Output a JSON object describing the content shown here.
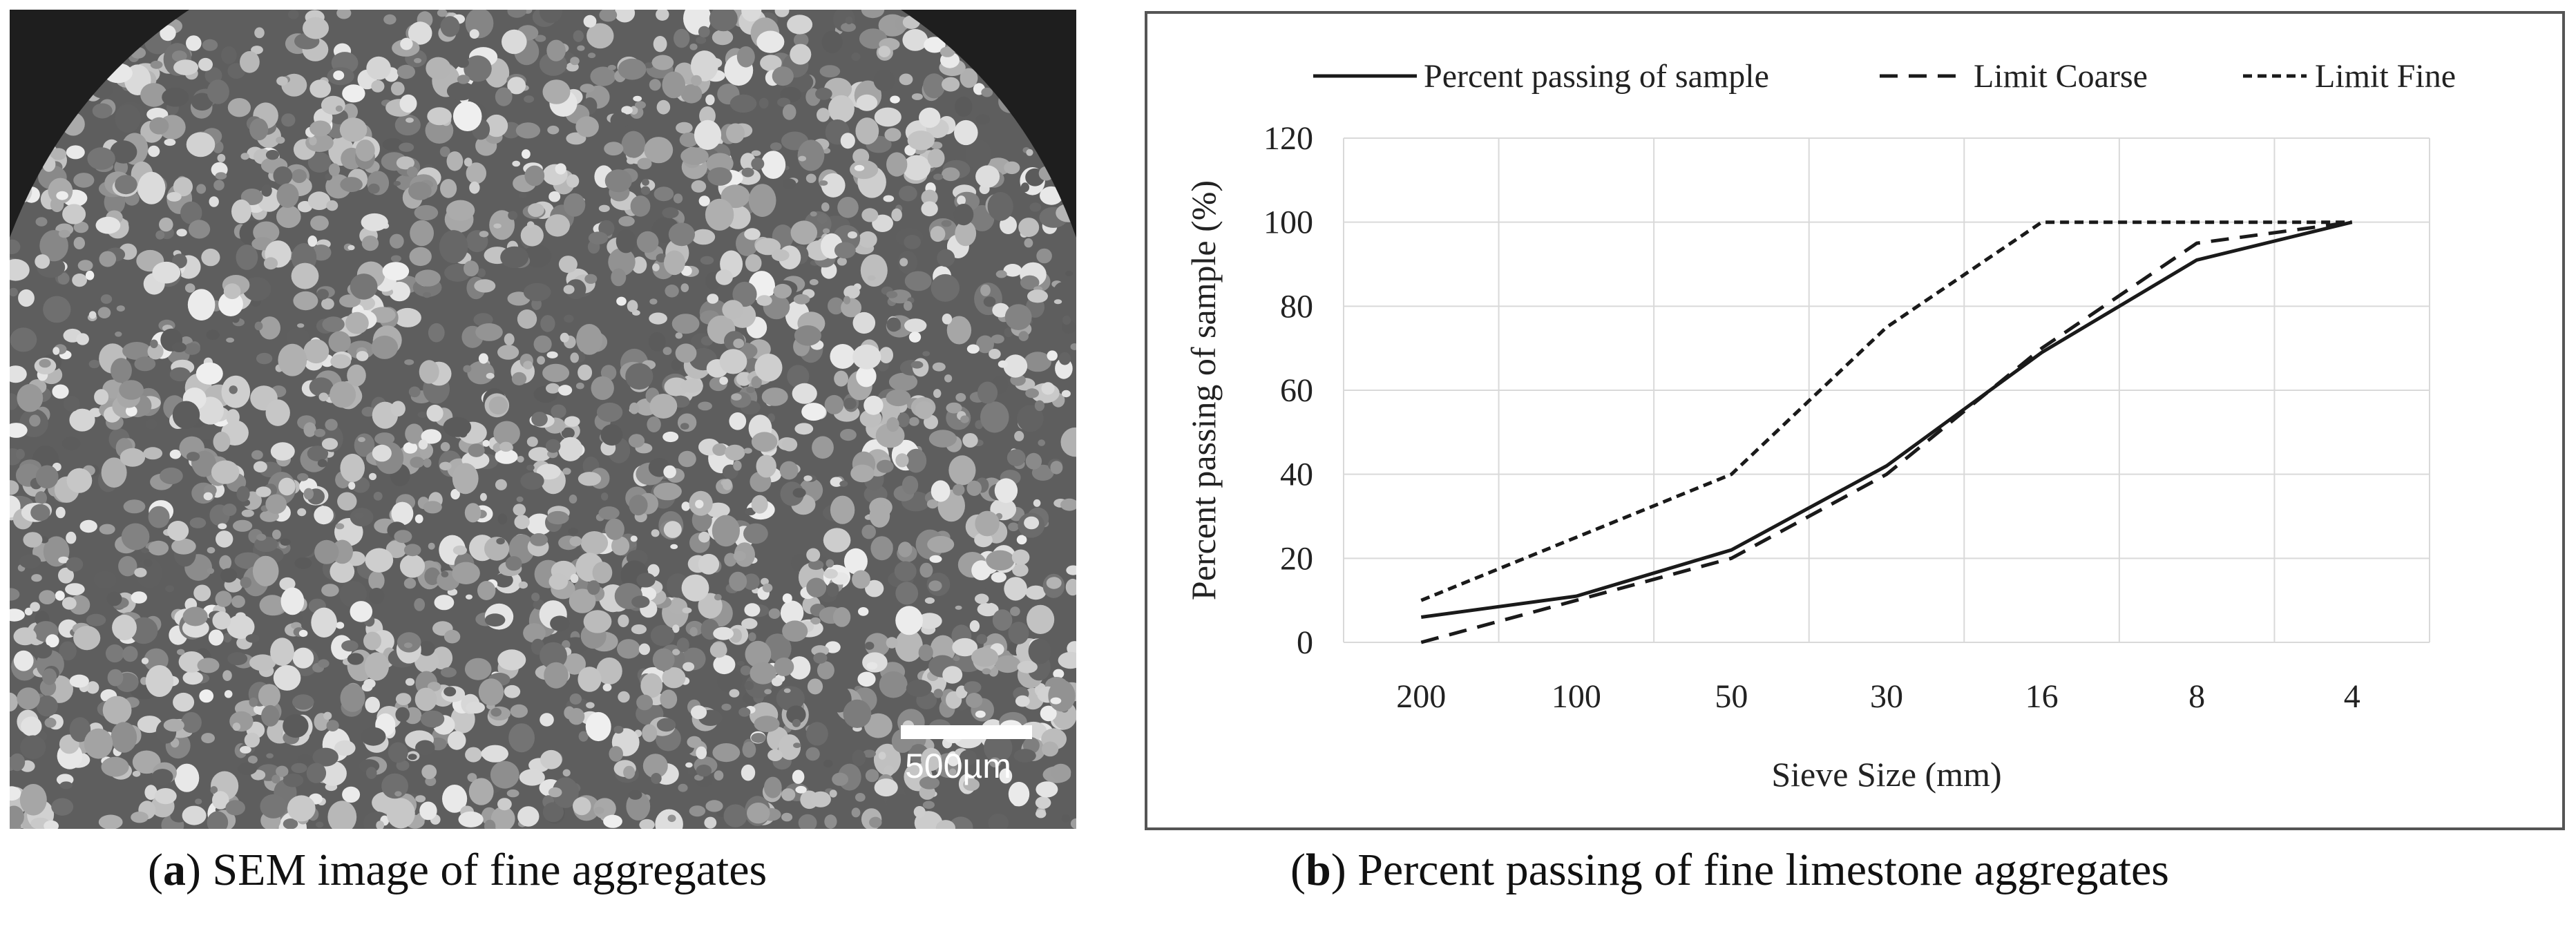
{
  "panel_a": {
    "scale_bar_label": "500µm",
    "caption_letter": "a",
    "caption_text": " SEM image of fine aggregates"
  },
  "panel_b": {
    "caption_letter": "b",
    "caption_text": " Percent passing of fine limestone aggregates"
  },
  "chart_data": {
    "type": "line",
    "title": "",
    "xlabel": "Sieve Size (mm)",
    "ylabel": "Percent passing of sample (%)",
    "categories": [
      "200",
      "100",
      "50",
      "30",
      "16",
      "8",
      "4"
    ],
    "ylim": [
      0,
      120
    ],
    "yticks": [
      0,
      20,
      40,
      60,
      80,
      100,
      120
    ],
    "grid": true,
    "legend_position": "top",
    "series": [
      {
        "name": "Percent passing of sample",
        "style": "solid",
        "values": [
          6,
          11,
          22,
          42,
          69,
          91,
          100
        ]
      },
      {
        "name": "Limit Coarse",
        "style": "dashed",
        "values": [
          0,
          10,
          20,
          40,
          70,
          95,
          100
        ]
      },
      {
        "name": "Limit Fine",
        "style": "dotted",
        "values": [
          10,
          25,
          40,
          75,
          100,
          100,
          100
        ]
      }
    ]
  }
}
